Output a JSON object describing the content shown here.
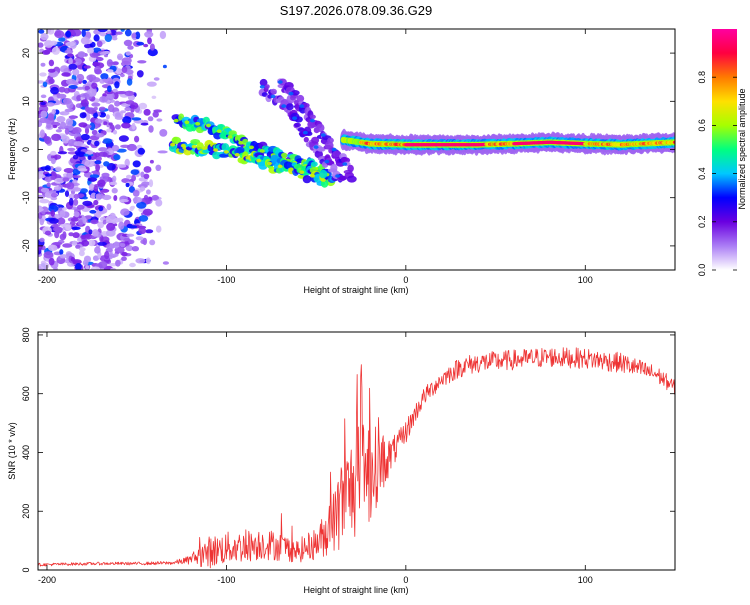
{
  "figure_title": "S197.2026.078.09.36.G29",
  "chart_data": [
    {
      "type": "heatmap",
      "title": "S197.2026.078.09.36.G29",
      "xlabel": "Height of straight line (km)",
      "ylabel": "Frequency (Hz)",
      "xlim": [
        -205,
        150
      ],
      "ylim": [
        -25,
        25
      ],
      "xticks": [
        -200,
        -100,
        0,
        100
      ],
      "yticks": [
        -20,
        -10,
        0,
        10,
        20
      ],
      "colorbar": {
        "label": "Normalized spectral amplitude",
        "range": [
          0.0,
          1.0
        ],
        "ticks": [
          0.0,
          0.2,
          0.4,
          0.6,
          0.8
        ],
        "colors": [
          "#ffffff",
          "#ab7df5",
          "#6a00e0",
          "#0000ff",
          "#00c8ff",
          "#00ff80",
          "#a6ff00",
          "#ffe000",
          "#ff7a00",
          "#ff0040",
          "#ff00a0"
        ]
      },
      "features": [
        {
          "name": "noise region",
          "x_range": [
            -205,
            -130
          ],
          "freq_range": [
            -25,
            25
          ],
          "amplitude": 0.15
        },
        {
          "name": "descending trace 1",
          "x": [
            -128,
            -110,
            -90,
            -75,
            -60,
            -50,
            -40
          ],
          "freq": [
            6,
            5,
            1,
            -1,
            -3,
            -4,
            -6
          ],
          "amplitude": 0.45
        },
        {
          "name": "descending trace 2",
          "x": [
            -130,
            -115,
            -100,
            -85,
            -70,
            -55,
            -45
          ],
          "freq": [
            1,
            0.5,
            -0.5,
            -2,
            -3.5,
            -5,
            -6.5
          ],
          "amplitude": 0.5
        },
        {
          "name": "arc 1",
          "x": [
            -80,
            -65,
            -55,
            -45,
            -35
          ],
          "freq": [
            13,
            8,
            3,
            -2,
            -7
          ],
          "amplitude": 0.2
        },
        {
          "name": "arc 2",
          "x": [
            -70,
            -60,
            -50,
            -40,
            -30
          ],
          "freq": [
            14,
            10,
            5,
            0,
            -5
          ],
          "amplitude": 0.2
        },
        {
          "name": "carrier",
          "x": [
            -35,
            -20,
            0,
            20,
            40,
            60,
            80,
            100,
            120,
            150
          ],
          "freq": [
            2,
            1.2,
            1,
            1,
            1,
            1.2,
            1.5,
            1.2,
            1,
            1.5
          ],
          "amplitude": 0.95
        }
      ]
    },
    {
      "type": "line",
      "xlabel": "Height of straight line (km)",
      "ylabel": "SNR (10 * v/v)",
      "xlim": [
        -205,
        150
      ],
      "ylim": [
        0,
        810
      ],
      "xticks": [
        -200,
        -100,
        0,
        100
      ],
      "yticks": [
        0,
        200,
        400,
        600,
        800
      ],
      "series": [
        {
          "name": "SNR",
          "color": "#ee3333",
          "x": [
            -205,
            -190,
            -170,
            -150,
            -130,
            -120,
            -110,
            -100,
            -90,
            -80,
            -70,
            -60,
            -50,
            -42,
            -36,
            -30,
            -25,
            -20,
            -15,
            -10,
            -5,
            0,
            5,
            10,
            20,
            30,
            40,
            60,
            80,
            100,
            120,
            140,
            150
          ],
          "y": [
            18,
            20,
            22,
            22,
            24,
            35,
            60,
            75,
            80,
            90,
            80,
            65,
            90,
            140,
            220,
            280,
            310,
            330,
            360,
            380,
            420,
            470,
            530,
            590,
            650,
            690,
            705,
            715,
            725,
            720,
            705,
            665,
            620
          ],
          "noise": [
            5,
            5,
            5,
            5,
            6,
            15,
            55,
            55,
            55,
            55,
            50,
            40,
            55,
            90,
            160,
            180,
            200,
            180,
            120,
            70,
            45,
            40,
            35,
            30,
            30,
            35,
            35,
            35,
            35,
            35,
            35,
            30,
            25
          ]
        }
      ]
    }
  ]
}
